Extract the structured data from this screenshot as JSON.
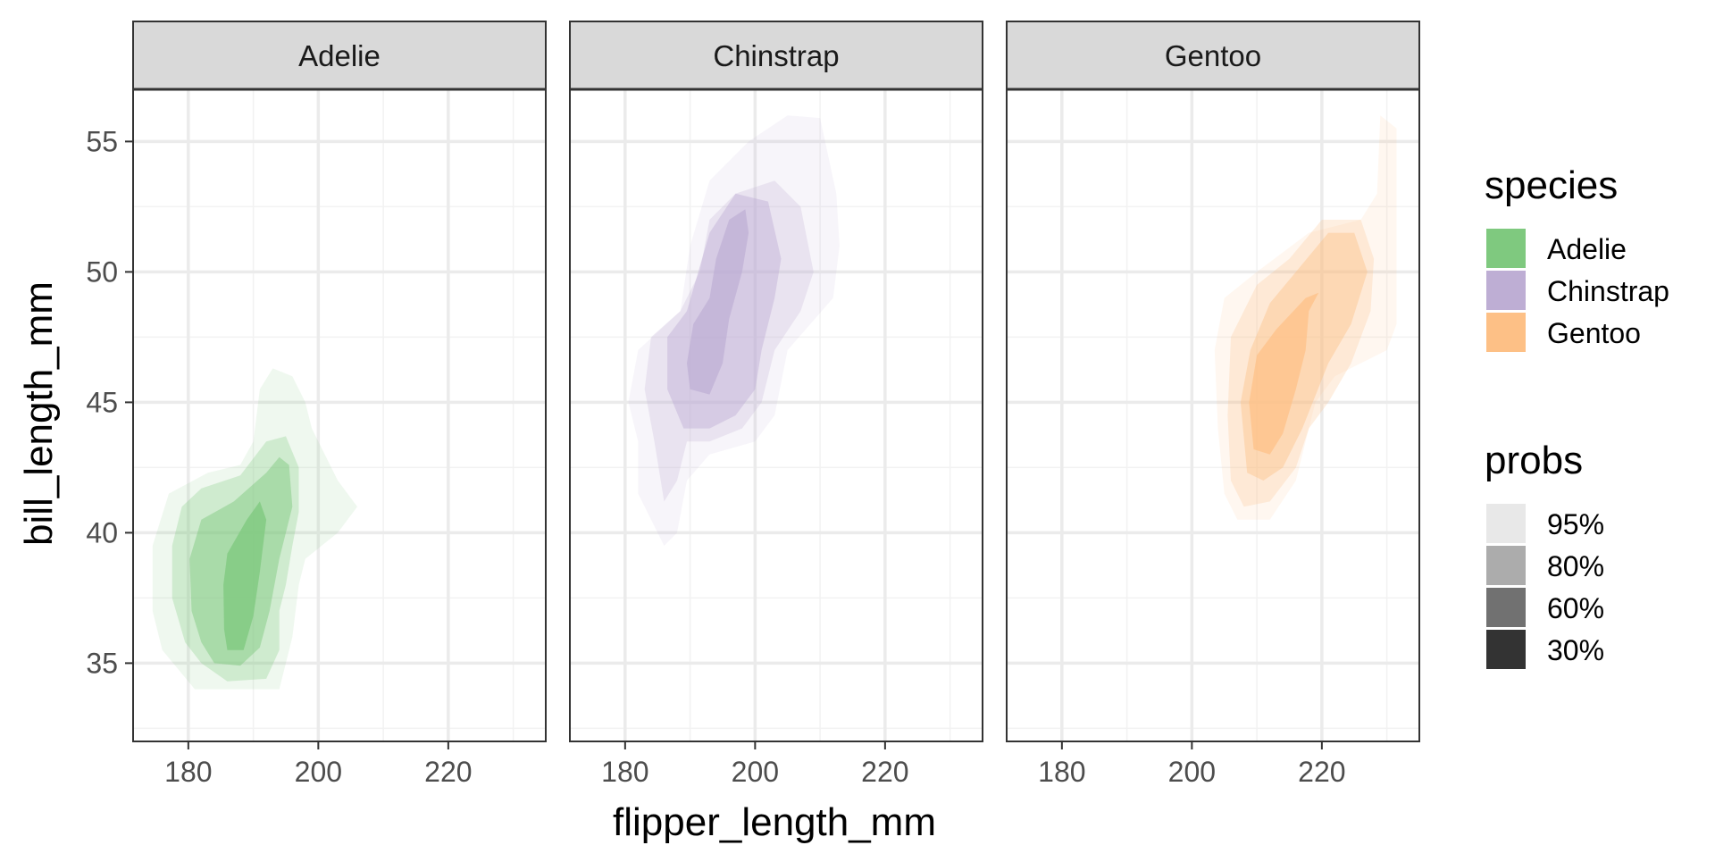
{
  "chart_data": {
    "type": "density2d_filled_faceted",
    "x_label": "flipper_length_mm",
    "y_label": "bill_length_mm",
    "xlim": [
      171.5,
      235
    ],
    "ylim": [
      32,
      57
    ],
    "x_ticks": [
      180,
      200,
      220
    ],
    "y_ticks": [
      35,
      40,
      45,
      50,
      55
    ],
    "grid": true,
    "panels": [
      {
        "name": "Adelie",
        "color": "#7fc97f",
        "levels": [
          {
            "prob": "95%",
            "opacity": 0.12,
            "polygon": [
              [
                181,
                34
              ],
              [
                186,
                34
              ],
              [
                194,
                34
              ],
              [
                196,
                36
              ],
              [
                197,
                38
              ],
              [
                198,
                39
              ],
              [
                203,
                40
              ],
              [
                206,
                41
              ],
              [
                203,
                42
              ],
              [
                201,
                43
              ],
              [
                199,
                44
              ],
              [
                198,
                45
              ],
              [
                196,
                46
              ],
              [
                193,
                46.3
              ],
              [
                191,
                45.5
              ],
              [
                190,
                43.5
              ],
              [
                188,
                42.6
              ],
              [
                183,
                42.3
              ],
              [
                177,
                41.5
              ],
              [
                174.5,
                39.5
              ],
              [
                174.5,
                37
              ],
              [
                176,
                35.5
              ]
            ]
          },
          {
            "prob": "80%",
            "opacity": 0.28,
            "polygon": [
              [
                182,
                35
              ],
              [
                186,
                34.3
              ],
              [
                192,
                34.4
              ],
              [
                194,
                35.5
              ],
              [
                194,
                37
              ],
              [
                195,
                38
              ],
              [
                196,
                39.5
              ],
              [
                197,
                40.8
              ],
              [
                197,
                42.5
              ],
              [
                195,
                43.7
              ],
              [
                192,
                43.5
              ],
              [
                188,
                42.2
              ],
              [
                182,
                41.7
              ],
              [
                179,
                41
              ],
              [
                177.5,
                39.5
              ],
              [
                177.5,
                37.5
              ],
              [
                179.5,
                35.8
              ]
            ]
          },
          {
            "prob": "60%",
            "opacity": 0.48,
            "polygon": [
              [
                184,
                35
              ],
              [
                188,
                34.9
              ],
              [
                191,
                35.6
              ],
              [
                192.5,
                37
              ],
              [
                194,
                39
              ],
              [
                196,
                41
              ],
              [
                195.5,
                42.6
              ],
              [
                194,
                42.9
              ],
              [
                192,
                42.3
              ],
              [
                187,
                41.2
              ],
              [
                182,
                40.5
              ],
              [
                180.2,
                39
              ],
              [
                180.5,
                37
              ],
              [
                182,
                35.8
              ]
            ]
          },
          {
            "prob": "30%",
            "opacity": 0.78,
            "polygon": [
              [
                186,
                35.5
              ],
              [
                188.5,
                35.5
              ],
              [
                190,
                36.8
              ],
              [
                191,
                38.5
              ],
              [
                192,
                40.5
              ],
              [
                191,
                41.2
              ],
              [
                189,
                40.5
              ],
              [
                186,
                39.2
              ],
              [
                185.4,
                38
              ],
              [
                185.5,
                36.3
              ]
            ]
          }
        ]
      },
      {
        "name": "Chinstrap",
        "color": "#beaed4",
        "levels": [
          {
            "prob": "95%",
            "opacity": 0.12,
            "polygon": [
              [
                186,
                39.5
              ],
              [
                188,
                40
              ],
              [
                189.5,
                42
              ],
              [
                193,
                43
              ],
              [
                200,
                43.5
              ],
              [
                203,
                44.5
              ],
              [
                205,
                47
              ],
              [
                212,
                49
              ],
              [
                213,
                51
              ],
              [
                212.5,
                53
              ],
              [
                210,
                55.9
              ],
              [
                205,
                56
              ],
              [
                199,
                55
              ],
              [
                193,
                53.5
              ],
              [
                190,
                51
              ],
              [
                188.5,
                48.5
              ],
              [
                182,
                47
              ],
              [
                180.5,
                45
              ],
              [
                182,
                43.5
              ],
              [
                182,
                41.5
              ]
            ]
          },
          {
            "prob": "80%",
            "opacity": 0.25,
            "polygon": [
              [
                186,
                41.2
              ],
              [
                188,
                42
              ],
              [
                189.5,
                43.5
              ],
              [
                193,
                43.5
              ],
              [
                198,
                44
              ],
              [
                201,
                45
              ],
              [
                203,
                47
              ],
              [
                207,
                48.5
              ],
              [
                209,
                50
              ],
              [
                207,
                52.5
              ],
              [
                203,
                53.5
              ],
              [
                197,
                53
              ],
              [
                193,
                52
              ],
              [
                191.5,
                50
              ],
              [
                188.5,
                48.5
              ],
              [
                184,
                47.5
              ],
              [
                183,
                45.5
              ],
              [
                184.5,
                43.5
              ]
            ]
          },
          {
            "prob": "60%",
            "opacity": 0.45,
            "polygon": [
              [
                189,
                44
              ],
              [
                193,
                44
              ],
              [
                197,
                44.5
              ],
              [
                200,
                45.5
              ],
              [
                201,
                47
              ],
              [
                203,
                49
              ],
              [
                204,
                50.5
              ],
              [
                202,
                52.7
              ],
              [
                197,
                53
              ],
              [
                193,
                51.5
              ],
              [
                189.5,
                48.5
              ],
              [
                186.5,
                47.5
              ],
              [
                186.5,
                45.5
              ]
            ]
          },
          {
            "prob": "30%",
            "opacity": 0.72,
            "polygon": [
              [
                190,
                45.5
              ],
              [
                193,
                45.3
              ],
              [
                195,
                46.5
              ],
              [
                196,
                48.2
              ],
              [
                198,
                50
              ],
              [
                199,
                51.5
              ],
              [
                198.5,
                52.4
              ],
              [
                196,
                52
              ],
              [
                194,
                50.5
              ],
              [
                193,
                49
              ],
              [
                190.5,
                48
              ],
              [
                189.5,
                46.5
              ]
            ]
          }
        ]
      },
      {
        "name": "Gentoo",
        "color": "#fdc086",
        "levels": [
          {
            "prob": "95%",
            "opacity": 0.12,
            "polygon": [
              [
                207,
                40.5
              ],
              [
                212,
                40.5
              ],
              [
                216,
                42
              ],
              [
                218,
                44
              ],
              [
                219,
                45
              ],
              [
                222,
                46
              ],
              [
                226,
                46.5
              ],
              [
                230,
                47
              ],
              [
                231.5,
                48
              ],
              [
                231.5,
                55.5
              ],
              [
                229,
                56
              ],
              [
                228.5,
                53
              ],
              [
                226,
                52
              ],
              [
                218,
                51.5
              ],
              [
                210,
                50
              ],
              [
                205,
                49
              ],
              [
                203.5,
                47
              ],
              [
                204,
                44
              ],
              [
                205,
                41.5
              ]
            ]
          },
          {
            "prob": "80%",
            "opacity": 0.25,
            "polygon": [
              [
                208,
                41
              ],
              [
                212,
                41.2
              ],
              [
                216,
                42.5
              ],
              [
                218,
                44
              ],
              [
                221,
                45
              ],
              [
                224.5,
                46.5
              ],
              [
                227.5,
                48.5
              ],
              [
                228,
                50.5
              ],
              [
                226,
                52
              ],
              [
                220,
                52
              ],
              [
                215,
                50.5
              ],
              [
                210,
                49.5
              ],
              [
                206,
                47.5
              ],
              [
                205.5,
                44.5
              ],
              [
                206,
                42
              ]
            ]
          },
          {
            "prob": "60%",
            "opacity": 0.42,
            "polygon": [
              [
                208.5,
                42.3
              ],
              [
                211,
                42
              ],
              [
                214,
                42.5
              ],
              [
                217,
                44
              ],
              [
                221,
                46.5
              ],
              [
                224.5,
                48
              ],
              [
                227,
                50
              ],
              [
                225,
                51.5
              ],
              [
                221,
                51.5
              ],
              [
                216,
                50
              ],
              [
                212,
                48.8
              ],
              [
                209,
                47
              ],
              [
                207.5,
                45
              ]
            ]
          },
          {
            "prob": "30%",
            "opacity": 0.72,
            "polygon": [
              [
                209.5,
                43.2
              ],
              [
                212,
                43
              ],
              [
                214,
                43.8
              ],
              [
                216,
                45.5
              ],
              [
                217.5,
                47
              ],
              [
                218,
                48.5
              ],
              [
                219.5,
                49.2
              ],
              [
                217.5,
                49
              ],
              [
                213,
                47.8
              ],
              [
                210,
                46.8
              ],
              [
                208.8,
                45
              ]
            ]
          }
        ]
      }
    ]
  },
  "legend": {
    "species": {
      "title": "species",
      "items": [
        {
          "label": "Adelie",
          "color": "#7fc97f"
        },
        {
          "label": "Chinstrap",
          "color": "#beaed4"
        },
        {
          "label": "Gentoo",
          "color": "#fdc086"
        }
      ]
    },
    "probs": {
      "title": "probs",
      "items": [
        {
          "label": "95%",
          "color": "#e8e8e8"
        },
        {
          "label": "80%",
          "color": "#acacac"
        },
        {
          "label": "60%",
          "color": "#717171"
        },
        {
          "label": "30%",
          "color": "#333333"
        }
      ]
    }
  }
}
